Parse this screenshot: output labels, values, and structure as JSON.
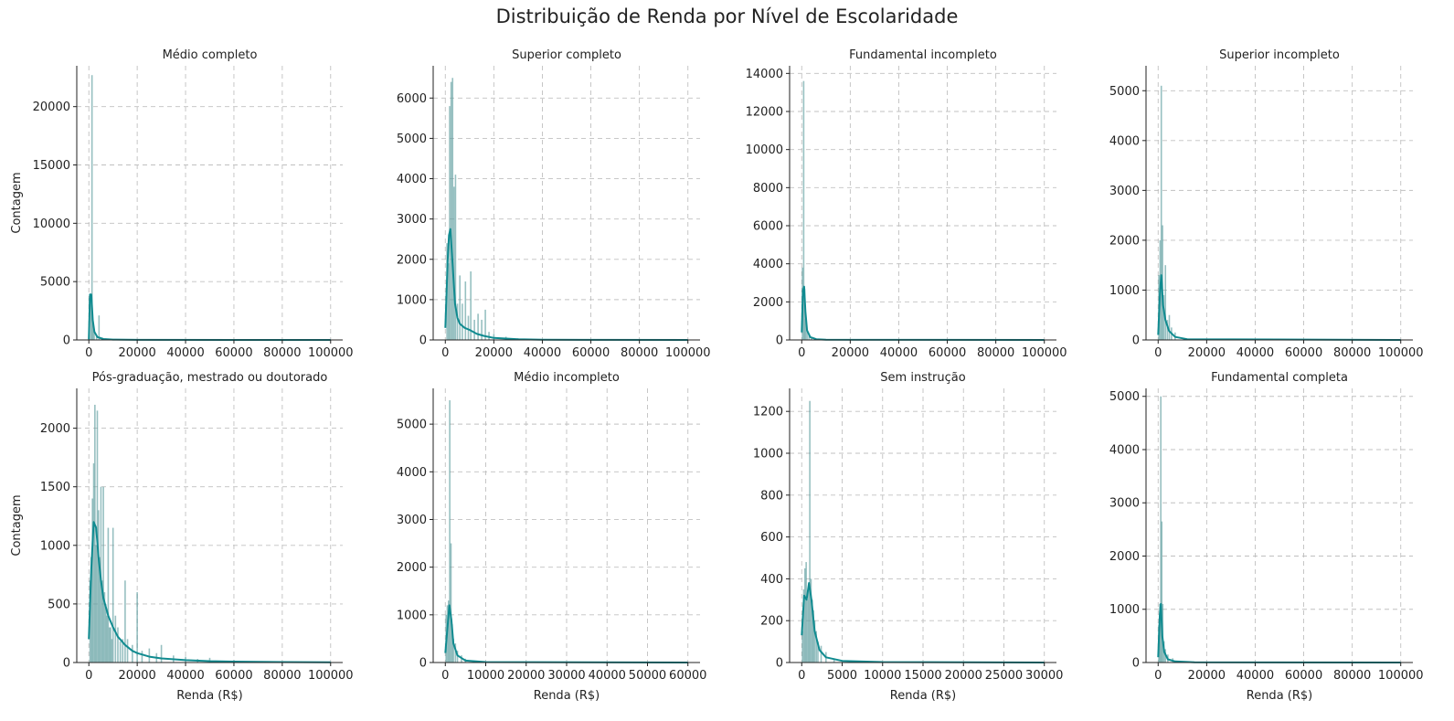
{
  "title": "Distribuição de Renda por Nível de Escolaridade",
  "colors": {
    "hist": "#5f9ea0",
    "kde": "#108b90",
    "grid": "#c0c0c0",
    "axis": "#222222"
  },
  "chart_data": [
    {
      "type": "histogram",
      "title": "Médio completo",
      "xlabel": "",
      "ylabel": "Contagem",
      "xlim": [
        -5000,
        105000
      ],
      "ylim": [
        0,
        23500
      ],
      "xticks": [
        0,
        20000,
        40000,
        60000,
        80000,
        100000
      ],
      "xtick_labels": [
        "0",
        "20000",
        "40000",
        "60000",
        "80000",
        "100000"
      ],
      "yticks": [
        0,
        5000,
        10000,
        15000,
        20000
      ],
      "ytick_labels": [
        "0",
        "5000",
        "10000",
        "15000",
        "20000"
      ],
      "bars": [
        [
          200,
          3600
        ],
        [
          900,
          3900
        ],
        [
          1300,
          22700
        ],
        [
          1700,
          1600
        ],
        [
          2200,
          700
        ],
        [
          3200,
          400
        ],
        [
          4200,
          2100
        ],
        [
          5500,
          200
        ],
        [
          7000,
          120
        ],
        [
          9000,
          60
        ]
      ],
      "kde": [
        [
          0,
          50
        ],
        [
          500,
          3900
        ],
        [
          1000,
          3900
        ],
        [
          1600,
          1700
        ],
        [
          2300,
          700
        ],
        [
          3500,
          250
        ],
        [
          6000,
          80
        ],
        [
          10000,
          30
        ],
        [
          20000,
          10
        ],
        [
          100000,
          0
        ]
      ],
      "grid": true
    },
    {
      "type": "histogram",
      "title": "Superior completo",
      "xlabel": "",
      "ylabel": "",
      "xlim": [
        -5000,
        105000
      ],
      "ylim": [
        0,
        6800
      ],
      "xticks": [
        0,
        20000,
        40000,
        60000,
        80000,
        100000
      ],
      "xtick_labels": [
        "0",
        "20000",
        "40000",
        "60000",
        "80000",
        "100000"
      ],
      "yticks": [
        0,
        1000,
        2000,
        3000,
        4000,
        5000,
        6000
      ],
      "ytick_labels": [
        "0",
        "1000",
        "2000",
        "3000",
        "4000",
        "5000",
        "6000"
      ],
      "bars": [
        [
          700,
          2400
        ],
        [
          1300,
          1900
        ],
        [
          1800,
          5800
        ],
        [
          2400,
          6400
        ],
        [
          3000,
          6500
        ],
        [
          3600,
          3800
        ],
        [
          4200,
          4100
        ],
        [
          5000,
          900
        ],
        [
          6000,
          1600
        ],
        [
          7000,
          900
        ],
        [
          8300,
          1450
        ],
        [
          9500,
          600
        ],
        [
          10500,
          1700
        ],
        [
          12000,
          500
        ],
        [
          13500,
          650
        ],
        [
          15000,
          500
        ],
        [
          16500,
          750
        ],
        [
          18000,
          200
        ],
        [
          20000,
          150
        ],
        [
          25000,
          80
        ],
        [
          30000,
          40
        ]
      ],
      "kde": [
        [
          0,
          300
        ],
        [
          1000,
          2000
        ],
        [
          1500,
          2600
        ],
        [
          2100,
          2750
        ],
        [
          3000,
          1900
        ],
        [
          4000,
          900
        ],
        [
          5000,
          550
        ],
        [
          6000,
          400
        ],
        [
          8000,
          300
        ],
        [
          10000,
          250
        ],
        [
          13000,
          150
        ],
        [
          16000,
          100
        ],
        [
          20000,
          50
        ],
        [
          30000,
          15
        ],
        [
          40000,
          5
        ],
        [
          100000,
          0
        ]
      ],
      "grid": true
    },
    {
      "type": "histogram",
      "title": "Fundamental incompleto",
      "xlabel": "",
      "ylabel": "",
      "xlim": [
        -5000,
        105000
      ],
      "ylim": [
        0,
        14400
      ],
      "xticks": [
        0,
        20000,
        40000,
        60000,
        80000,
        100000
      ],
      "xtick_labels": [
        "0",
        "20000",
        "40000",
        "60000",
        "80000",
        "100000"
      ],
      "yticks": [
        0,
        2000,
        4000,
        6000,
        8000,
        10000,
        12000,
        14000
      ],
      "ytick_labels": [
        "0",
        "2000",
        "4000",
        "6000",
        "8000",
        "10000",
        "12000",
        "14000"
      ],
      "bars": [
        [
          300,
          3800
        ],
        [
          800,
          13600
        ],
        [
          1200,
          2700
        ],
        [
          1600,
          1100
        ],
        [
          2200,
          500
        ],
        [
          3000,
          300
        ],
        [
          4000,
          150
        ]
      ],
      "kde": [
        [
          0,
          400
        ],
        [
          500,
          2600
        ],
        [
          1000,
          2800
        ],
        [
          1500,
          1500
        ],
        [
          2200,
          500
        ],
        [
          3500,
          150
        ],
        [
          6000,
          40
        ],
        [
          10000,
          10
        ],
        [
          100000,
          0
        ]
      ],
      "grid": true
    },
    {
      "type": "histogram",
      "title": "Superior incompleto",
      "xlabel": "",
      "ylabel": "",
      "xlim": [
        -5000,
        105000
      ],
      "ylim": [
        0,
        5500
      ],
      "xticks": [
        0,
        20000,
        40000,
        60000,
        80000,
        100000
      ],
      "xtick_labels": [
        "0",
        "20000",
        "40000",
        "60000",
        "80000",
        "100000"
      ],
      "yticks": [
        0,
        1000,
        2000,
        3000,
        4000,
        5000
      ],
      "ytick_labels": [
        "0",
        "1000",
        "2000",
        "3000",
        "4000",
        "5000"
      ],
      "bars": [
        [
          300,
          1300
        ],
        [
          800,
          2000
        ],
        [
          1300,
          5100
        ],
        [
          1800,
          2300
        ],
        [
          2300,
          900
        ],
        [
          3000,
          1500
        ],
        [
          3800,
          400
        ],
        [
          4600,
          500
        ],
        [
          5500,
          250
        ],
        [
          7000,
          150
        ]
      ],
      "kde": [
        [
          0,
          100
        ],
        [
          800,
          1000
        ],
        [
          1300,
          1300
        ],
        [
          2000,
          700
        ],
        [
          3000,
          400
        ],
        [
          4500,
          180
        ],
        [
          7000,
          60
        ],
        [
          12000,
          15
        ],
        [
          100000,
          0
        ]
      ],
      "grid": true
    },
    {
      "type": "histogram",
      "title": "Pós-graduação, mestrado ou doutorado",
      "xlabel": "Renda (R$)",
      "ylabel": "Contagem",
      "xlim": [
        -5000,
        105000
      ],
      "ylim": [
        0,
        2340
      ],
      "xticks": [
        0,
        20000,
        40000,
        60000,
        80000,
        100000
      ],
      "xtick_labels": [
        "0",
        "20000",
        "40000",
        "60000",
        "80000",
        "100000"
      ],
      "yticks": [
        0,
        500,
        1000,
        1500,
        2000
      ],
      "ytick_labels": [
        "0",
        "500",
        "1000",
        "1500",
        "2000"
      ],
      "bars": [
        [
          500,
          700
        ],
        [
          1000,
          900
        ],
        [
          1500,
          1400
        ],
        [
          2000,
          1700
        ],
        [
          2500,
          2200
        ],
        [
          3000,
          1000
        ],
        [
          3500,
          2150
        ],
        [
          4000,
          1300
        ],
        [
          4500,
          900
        ],
        [
          5000,
          1500
        ],
        [
          5500,
          700
        ],
        [
          6000,
          1500
        ],
        [
          6500,
          600
        ],
        [
          7000,
          500
        ],
        [
          7500,
          400
        ],
        [
          8000,
          1150
        ],
        [
          8500,
          300
        ],
        [
          9000,
          300
        ],
        [
          9500,
          200
        ],
        [
          10000,
          1150
        ],
        [
          11000,
          400
        ],
        [
          12000,
          300
        ],
        [
          13000,
          180
        ],
        [
          14000,
          200
        ],
        [
          15000,
          700
        ],
        [
          16000,
          200
        ],
        [
          18000,
          150
        ],
        [
          20000,
          600
        ],
        [
          22000,
          100
        ],
        [
          25000,
          120
        ],
        [
          28000,
          80
        ],
        [
          30000,
          150
        ],
        [
          35000,
          60
        ],
        [
          40000,
          50
        ],
        [
          45000,
          30
        ],
        [
          50000,
          40
        ],
        [
          60000,
          20
        ],
        [
          70000,
          10
        ],
        [
          80000,
          8
        ],
        [
          100000,
          5
        ]
      ],
      "kde": [
        [
          0,
          200
        ],
        [
          1000,
          800
        ],
        [
          2000,
          1200
        ],
        [
          3000,
          1150
        ],
        [
          4000,
          900
        ],
        [
          5000,
          700
        ],
        [
          6000,
          550
        ],
        [
          8000,
          400
        ],
        [
          10000,
          300
        ],
        [
          12000,
          220
        ],
        [
          15000,
          150
        ],
        [
          18000,
          100
        ],
        [
          20000,
          80
        ],
        [
          25000,
          50
        ],
        [
          30000,
          35
        ],
        [
          40000,
          20
        ],
        [
          50000,
          12
        ],
        [
          60000,
          8
        ],
        [
          80000,
          4
        ],
        [
          100000,
          2
        ]
      ],
      "grid": true
    },
    {
      "type": "histogram",
      "title": "Médio incompleto",
      "xlabel": "Renda (R$)",
      "ylabel": "",
      "xlim": [
        -3000,
        63000
      ],
      "ylim": [
        0,
        5750
      ],
      "xticks": [
        0,
        10000,
        20000,
        30000,
        40000,
        50000,
        60000
      ],
      "xtick_labels": [
        "0",
        "10000",
        "20000",
        "30000",
        "40000",
        "50000",
        "60000"
      ],
      "yticks": [
        0,
        1000,
        2000,
        3000,
        4000,
        5000
      ],
      "ytick_labels": [
        "0",
        "1000",
        "2000",
        "3000",
        "4000",
        "5000"
      ],
      "bars": [
        [
          200,
          1000
        ],
        [
          500,
          1200
        ],
        [
          800,
          1300
        ],
        [
          1100,
          5500
        ],
        [
          1400,
          2500
        ],
        [
          1700,
          800
        ],
        [
          2000,
          500
        ],
        [
          2500,
          400
        ],
        [
          3000,
          250
        ],
        [
          4000,
          150
        ],
        [
          5000,
          80
        ]
      ],
      "kde": [
        [
          0,
          200
        ],
        [
          500,
          700
        ],
        [
          1000,
          1200
        ],
        [
          1500,
          900
        ],
        [
          2000,
          400
        ],
        [
          3000,
          150
        ],
        [
          5000,
          40
        ],
        [
          10000,
          10
        ],
        [
          60000,
          0
        ]
      ],
      "grid": true
    },
    {
      "type": "histogram",
      "title": "Sem instrução",
      "xlabel": "Renda (R$)",
      "ylabel": "",
      "xlim": [
        -1500,
        31500
      ],
      "ylim": [
        0,
        1310
      ],
      "xticks": [
        0,
        5000,
        10000,
        15000,
        20000,
        25000,
        30000
      ],
      "xtick_labels": [
        "0",
        "5000",
        "10000",
        "15000",
        "20000",
        "25000",
        "30000"
      ],
      "yticks": [
        0,
        200,
        400,
        600,
        800,
        1000,
        1200
      ],
      "ytick_labels": [
        "0",
        "200",
        "400",
        "600",
        "800",
        "1000",
        "1200"
      ],
      "bars": [
        [
          100,
          150
        ],
        [
          250,
          350
        ],
        [
          400,
          450
        ],
        [
          550,
          480
        ],
        [
          700,
          300
        ],
        [
          850,
          350
        ],
        [
          1000,
          1250
        ],
        [
          1150,
          400
        ],
        [
          1300,
          300
        ],
        [
          1450,
          250
        ],
        [
          1600,
          200
        ],
        [
          1800,
          150
        ],
        [
          2000,
          100
        ],
        [
          2400,
          80
        ],
        [
          3000,
          50
        ],
        [
          4000,
          20
        ]
      ],
      "kde": [
        [
          0,
          130
        ],
        [
          300,
          320
        ],
        [
          600,
          300
        ],
        [
          900,
          380
        ],
        [
          1200,
          300
        ],
        [
          1600,
          150
        ],
        [
          2200,
          60
        ],
        [
          3000,
          25
        ],
        [
          5000,
          8
        ],
        [
          10000,
          2
        ],
        [
          30000,
          0
        ]
      ],
      "grid": true
    },
    {
      "type": "histogram",
      "title": "Fundamental completa",
      "xlabel": "Renda (R$)",
      "ylabel": "",
      "xlim": [
        -5000,
        105000
      ],
      "ylim": [
        0,
        5150
      ],
      "xticks": [
        0,
        20000,
        40000,
        60000,
        80000,
        100000
      ],
      "xtick_labels": [
        "0",
        "20000",
        "40000",
        "60000",
        "80000",
        "100000"
      ],
      "yticks": [
        0,
        1000,
        2000,
        3000,
        4000,
        5000
      ],
      "ytick_labels": [
        "0",
        "1000",
        "2000",
        "3000",
        "4000",
        "5000"
      ],
      "bars": [
        [
          300,
          700
        ],
        [
          700,
          1100
        ],
        [
          1100,
          5000
        ],
        [
          1500,
          2650
        ],
        [
          1900,
          1100
        ],
        [
          2400,
          400
        ],
        [
          3000,
          250
        ],
        [
          4000,
          150
        ],
        [
          6000,
          80
        ]
      ],
      "kde": [
        [
          0,
          100
        ],
        [
          700,
          900
        ],
        [
          1100,
          1100
        ],
        [
          1700,
          500
        ],
        [
          2500,
          200
        ],
        [
          4000,
          60
        ],
        [
          7000,
          20
        ],
        [
          15000,
          5
        ],
        [
          100000,
          0
        ]
      ],
      "grid": true
    }
  ]
}
